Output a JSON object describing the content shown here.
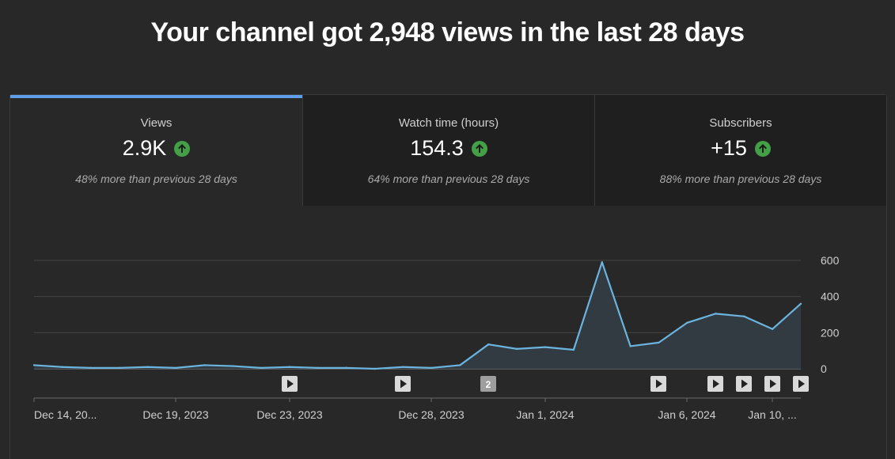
{
  "headline": "Your channel got 2,948 views in the last 28 days",
  "tabs": [
    {
      "title": "Views",
      "value": "2.9K",
      "compare": "48% more than previous 28 days",
      "active": true,
      "trend_icon": "arrow-up-icon"
    },
    {
      "title": "Watch time (hours)",
      "value": "154.3",
      "compare": "64% more than previous 28 days",
      "active": false,
      "trend_icon": "arrow-up-icon"
    },
    {
      "title": "Subscribers",
      "value": "+15",
      "compare": "88% more than previous 28 days",
      "active": false,
      "trend_icon": "arrow-up-icon"
    }
  ],
  "colors": {
    "accent": "#5f9de8",
    "line": "#6ab4de",
    "up": "#43a047",
    "background": "#282828"
  },
  "chart_data": {
    "type": "area",
    "series": [
      {
        "values": [
          20,
          10,
          5,
          5,
          10,
          5,
          20,
          15,
          5,
          10,
          5,
          5,
          0,
          10,
          5,
          20,
          135,
          110,
          120,
          105,
          590,
          125,
          145,
          255,
          305,
          290,
          220,
          360
        ]
      }
    ],
    "x_tick_labels": [
      "Dec 14, 20...",
      "Dec 19, 2023",
      "Dec 23, 2023",
      "Dec 28, 2023",
      "Jan 1, 2024",
      "Jan 6, 2024",
      "Jan 10, ..."
    ],
    "y_ticks": [
      0,
      200,
      400,
      600
    ],
    "ylim": [
      0,
      600
    ],
    "grid": true,
    "y_axis_position": "right",
    "markers": [
      {
        "kind": "video",
        "label": ""
      },
      {
        "kind": "video",
        "label": ""
      },
      {
        "kind": "count",
        "label": "2"
      },
      {
        "kind": "video",
        "label": ""
      },
      {
        "kind": "video",
        "label": ""
      },
      {
        "kind": "video",
        "label": ""
      },
      {
        "kind": "video",
        "label": ""
      },
      {
        "kind": "video",
        "label": ""
      }
    ]
  }
}
